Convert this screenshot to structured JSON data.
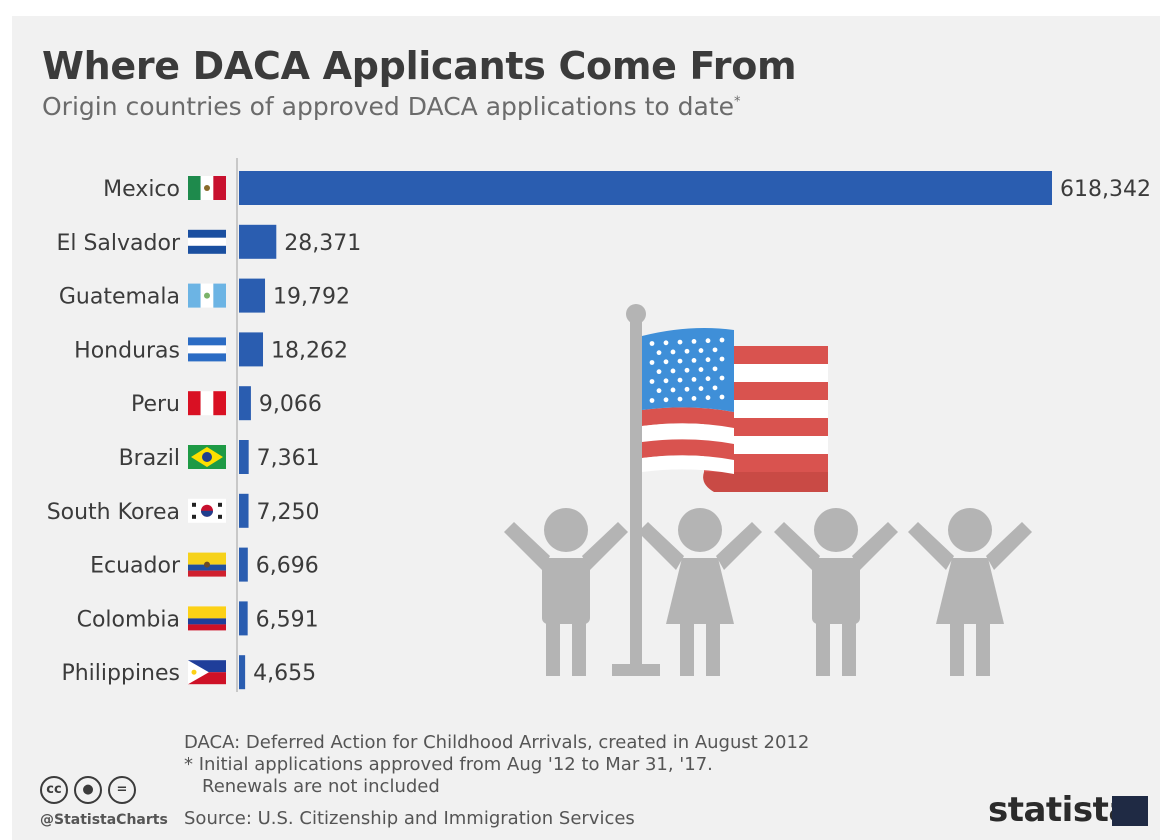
{
  "header": {
    "title": "Where DACA Applicants Come From",
    "subtitle": "Origin countries of approved DACA applications to date",
    "subtitle_marker": "*"
  },
  "chart_data": {
    "type": "bar",
    "orientation": "horizontal",
    "categories": [
      "Mexico",
      "El Salvador",
      "Guatemala",
      "Honduras",
      "Peru",
      "Brazil",
      "South Korea",
      "Ecuador",
      "Colombia",
      "Philippines"
    ],
    "values": [
      618342,
      28371,
      19792,
      18262,
      9066,
      7361,
      7250,
      6696,
      6591,
      4655
    ],
    "value_labels": [
      "618,342",
      "28,371",
      "19,792",
      "18,262",
      "9,066",
      "7,361",
      "7,250",
      "6,696",
      "6,591",
      "4,655"
    ],
    "bar_color": "#2a5db0",
    "legend": "none",
    "grid": false
  },
  "illustration": "us-flag-with-children",
  "footer": {
    "note_1": "DACA: Deferred Action for Childhood Arrivals, created in August 2012",
    "note_2": "* Initial applications approved from Aug '12 to Mar 31, '17.",
    "note_3": "Renewals are not included",
    "source": "Source: U.S. Citizenship and Immigration Services",
    "handle": "@StatistaCharts",
    "brand": "statista"
  },
  "colors": {
    "background": "#f1f1f1",
    "bar": "#2a5db0",
    "title": "#3b3b3b",
    "illustration_gray": "#b4b4b4",
    "flag_red": "#d9534f",
    "flag_blue": "#3f8fd8"
  }
}
